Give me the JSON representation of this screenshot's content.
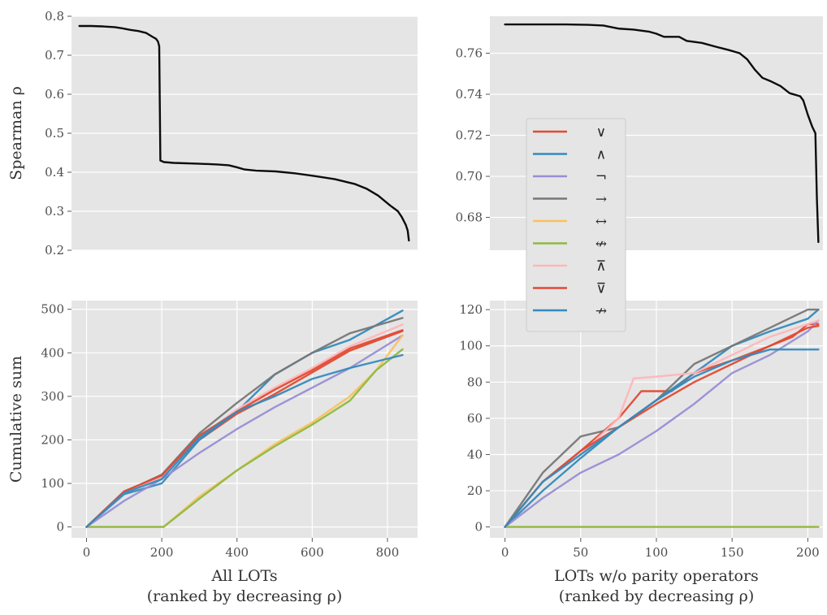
{
  "legend": {
    "placement": "between right panels",
    "entries": [
      {
        "label": "∨",
        "color": "#E24A33"
      },
      {
        "label": "∧",
        "color": "#348ABD"
      },
      {
        "label": "¬",
        "color": "#988ED5"
      },
      {
        "label": "→",
        "color": "#777777"
      },
      {
        "label": "↔",
        "color": "#FBC15E"
      },
      {
        "label": "↮",
        "color": "#8EBA42"
      },
      {
        "label": "⊼",
        "color": "#FFB5B8"
      },
      {
        "label": "⊽",
        "color": "#E24A33"
      },
      {
        "label": "↛",
        "color": "#348ABD"
      }
    ]
  },
  "style": {
    "background": "#E5E5E5",
    "grid": "#FFFFFF",
    "line": "#000000"
  },
  "chart_data": [
    {
      "id": "top-left",
      "type": "line",
      "xlabel": "",
      "ylabel": "Spearman ρ",
      "xlim": [
        -20,
        860
      ],
      "ylim": [
        0.2,
        0.8
      ],
      "grid": true,
      "show_xticks": false,
      "yticks": [
        0.2,
        0.3,
        0.4,
        0.5,
        0.6,
        0.7,
        0.8
      ],
      "ytick_labels": [
        "0.2",
        "0.3",
        "0.4",
        "0.5",
        "0.6",
        "0.7",
        "0.8"
      ],
      "series": [
        {
          "color": "#000000",
          "points": [
            [
              0,
              0.775
            ],
            [
              30,
              0.775
            ],
            [
              60,
              0.774
            ],
            [
              90,
              0.772
            ],
            [
              110,
              0.769
            ],
            [
              130,
              0.765
            ],
            [
              150,
              0.762
            ],
            [
              170,
              0.757
            ],
            [
              185,
              0.748
            ],
            [
              195,
              0.742
            ],
            [
              200,
              0.735
            ],
            [
              203,
              0.723
            ],
            [
              206,
              0.43
            ],
            [
              215,
              0.426
            ],
            [
              240,
              0.424
            ],
            [
              300,
              0.422
            ],
            [
              350,
              0.42
            ],
            [
              380,
              0.418
            ],
            [
              400,
              0.413
            ],
            [
              420,
              0.407
            ],
            [
              450,
              0.404
            ],
            [
              500,
              0.402
            ],
            [
              550,
              0.397
            ],
            [
              600,
              0.39
            ],
            [
              650,
              0.382
            ],
            [
              700,
              0.37
            ],
            [
              730,
              0.358
            ],
            [
              760,
              0.34
            ],
            [
              790,
              0.315
            ],
            [
              810,
              0.3
            ],
            [
              820,
              0.285
            ],
            [
              830,
              0.265
            ],
            [
              835,
              0.25
            ],
            [
              838,
              0.225
            ]
          ]
        }
      ]
    },
    {
      "id": "top-right",
      "type": "line",
      "xlabel": "",
      "ylabel": "",
      "xlim": [
        -10,
        210
      ],
      "ylim": [
        0.664,
        0.778
      ],
      "grid": true,
      "show_xticks": false,
      "yticks": [
        0.68,
        0.7,
        0.72,
        0.74,
        0.76
      ],
      "ytick_labels": [
        "0.68",
        "0.70",
        "0.72",
        "0.74",
        "0.76"
      ],
      "series": [
        {
          "color": "#000000",
          "points": [
            [
              0,
              0.774
            ],
            [
              20,
              0.774
            ],
            [
              40,
              0.774
            ],
            [
              55,
              0.7738
            ],
            [
              65,
              0.7735
            ],
            [
              75,
              0.772
            ],
            [
              85,
              0.7715
            ],
            [
              95,
              0.7705
            ],
            [
              100,
              0.7695
            ],
            [
              105,
              0.768
            ],
            [
              115,
              0.768
            ],
            [
              120,
              0.766
            ],
            [
              130,
              0.765
            ],
            [
              140,
              0.763
            ],
            [
              148,
              0.7615
            ],
            [
              155,
              0.76
            ],
            [
              160,
              0.757
            ],
            [
              165,
              0.752
            ],
            [
              170,
              0.748
            ],
            [
              175,
              0.7465
            ],
            [
              182,
              0.744
            ],
            [
              188,
              0.7405
            ],
            [
              195,
              0.739
            ],
            [
              197,
              0.737
            ],
            [
              200,
              0.73
            ],
            [
              203,
              0.724
            ],
            [
              205,
              0.721
            ],
            [
              206,
              0.69
            ],
            [
              207,
              0.668
            ]
          ]
        }
      ]
    },
    {
      "id": "bottom-left",
      "type": "line",
      "xlabel": "All LOTs",
      "xlabel2": "(ranked by decreasing ρ)",
      "ylabel": "Cumulative sum",
      "xlim": [
        -40,
        880
      ],
      "ylim": [
        -25,
        520
      ],
      "grid": true,
      "xticks": [
        0,
        200,
        400,
        600,
        800
      ],
      "xtick_labels": [
        "0",
        "200",
        "400",
        "600",
        "800"
      ],
      "yticks": [
        0,
        100,
        200,
        300,
        400,
        500
      ],
      "ytick_labels": [
        "0",
        "100",
        "200",
        "300",
        "400",
        "500"
      ],
      "series": [
        {
          "label": "∨",
          "color": "#E24A33",
          "points": [
            [
              0,
              0
            ],
            [
              100,
              80
            ],
            [
              200,
              120
            ],
            [
              300,
              200
            ],
            [
              400,
              260
            ],
            [
              500,
              305
            ],
            [
              600,
              355
            ],
            [
              700,
              405
            ],
            [
              840,
              450
            ]
          ]
        },
        {
          "label": "∧",
          "color": "#348ABD",
          "points": [
            [
              0,
              0
            ],
            [
              100,
              75
            ],
            [
              200,
              100
            ],
            [
              300,
              200
            ],
            [
              400,
              265
            ],
            [
              500,
              350
            ],
            [
              600,
              400
            ],
            [
              700,
              430
            ],
            [
              840,
              497
            ]
          ]
        },
        {
          "label": "¬",
          "color": "#988ED5",
          "points": [
            [
              0,
              0
            ],
            [
              100,
              60
            ],
            [
              200,
              110
            ],
            [
              300,
              170
            ],
            [
              400,
              225
            ],
            [
              500,
              275
            ],
            [
              600,
              320
            ],
            [
              700,
              365
            ],
            [
              840,
              440
            ]
          ]
        },
        {
          "label": "→",
          "color": "#777777",
          "points": [
            [
              0,
              0
            ],
            [
              100,
              80
            ],
            [
              200,
              120
            ],
            [
              300,
              215
            ],
            [
              400,
              285
            ],
            [
              500,
              350
            ],
            [
              600,
              400
            ],
            [
              700,
              445
            ],
            [
              840,
              480
            ]
          ]
        },
        {
          "label": "↔",
          "color": "#FBC15E",
          "points": [
            [
              0,
              0
            ],
            [
              205,
              0
            ],
            [
              300,
              70
            ],
            [
              400,
              130
            ],
            [
              500,
              190
            ],
            [
              600,
              240
            ],
            [
              700,
              300
            ],
            [
              770,
              360
            ],
            [
              840,
              440
            ]
          ]
        },
        {
          "label": "↮",
          "color": "#8EBA42",
          "points": [
            [
              0,
              0
            ],
            [
              205,
              0
            ],
            [
              300,
              65
            ],
            [
              400,
              130
            ],
            [
              500,
              185
            ],
            [
              600,
              235
            ],
            [
              700,
              290
            ],
            [
              770,
              360
            ],
            [
              840,
              408
            ]
          ]
        },
        {
          "label": "⊼",
          "color": "#FFB5B8",
          "points": [
            [
              0,
              0
            ],
            [
              100,
              78
            ],
            [
              200,
              115
            ],
            [
              300,
              205
            ],
            [
              400,
              270
            ],
            [
              500,
              320
            ],
            [
              600,
              365
            ],
            [
              700,
              415
            ],
            [
              840,
              465
            ]
          ]
        },
        {
          "label": "⊽",
          "color": "#E24A33",
          "points": [
            [
              0,
              0
            ],
            [
              100,
              82
            ],
            [
              200,
              118
            ],
            [
              300,
              210
            ],
            [
              400,
              265
            ],
            [
              500,
              315
            ],
            [
              600,
              360
            ],
            [
              700,
              410
            ],
            [
              840,
              452
            ]
          ]
        },
        {
          "label": "↛",
          "color": "#348ABD",
          "points": [
            [
              0,
              0
            ],
            [
              100,
              78
            ],
            [
              200,
              110
            ],
            [
              300,
              205
            ],
            [
              400,
              265
            ],
            [
              500,
              300
            ],
            [
              600,
              340
            ],
            [
              700,
              365
            ],
            [
              840,
              395
            ]
          ]
        }
      ]
    },
    {
      "id": "bottom-right",
      "type": "line",
      "xlabel": "LOTs w/o parity operators",
      "xlabel2": "(ranked by decreasing ρ)",
      "ylabel": "",
      "xlim": [
        -10,
        210
      ],
      "ylim": [
        -6,
        125
      ],
      "grid": true,
      "xticks": [
        0,
        50,
        100,
        150,
        200
      ],
      "xtick_labels": [
        "0",
        "50",
        "100",
        "150",
        "200"
      ],
      "yticks": [
        0,
        20,
        40,
        60,
        80,
        100,
        120
      ],
      "ytick_labels": [
        "0",
        "20",
        "40",
        "60",
        "80",
        "100",
        "120"
      ],
      "series": [
        {
          "label": "∨",
          "color": "#E24A33",
          "points": [
            [
              0,
              0
            ],
            [
              25,
              25
            ],
            [
              50,
              42
            ],
            [
              75,
              60
            ],
            [
              90,
              75
            ],
            [
              110,
              75
            ],
            [
              125,
              85
            ],
            [
              150,
              92
            ],
            [
              175,
              100
            ],
            [
              190,
              105
            ],
            [
              200,
              112
            ],
            [
              207,
              112
            ]
          ]
        },
        {
          "label": "∧",
          "color": "#348ABD",
          "points": [
            [
              0,
              0
            ],
            [
              25,
              20
            ],
            [
              50,
              38
            ],
            [
              75,
              55
            ],
            [
              100,
              70
            ],
            [
              125,
              85
            ],
            [
              150,
              100
            ],
            [
              175,
              108
            ],
            [
              200,
              115
            ],
            [
              207,
              120
            ]
          ]
        },
        {
          "label": "¬",
          "color": "#988ED5",
          "points": [
            [
              0,
              0
            ],
            [
              25,
              16
            ],
            [
              50,
              30
            ],
            [
              75,
              40
            ],
            [
              100,
              53
            ],
            [
              125,
              68
            ],
            [
              150,
              85
            ],
            [
              175,
              95
            ],
            [
              200,
              108
            ],
            [
              207,
              114
            ]
          ]
        },
        {
          "label": "→",
          "color": "#777777",
          "points": [
            [
              0,
              0
            ],
            [
              25,
              30
            ],
            [
              50,
              50
            ],
            [
              75,
              55
            ],
            [
              100,
              70
            ],
            [
              125,
              90
            ],
            [
              150,
              100
            ],
            [
              175,
              110
            ],
            [
              200,
              120
            ],
            [
              207,
              120
            ]
          ]
        },
        {
          "label": "↔",
          "color": "#FBC15E",
          "points": [
            [
              0,
              0
            ],
            [
              207,
              0
            ]
          ]
        },
        {
          "label": "↮",
          "color": "#8EBA42",
          "points": [
            [
              0,
              0
            ],
            [
              207,
              0
            ]
          ]
        },
        {
          "label": "⊼",
          "color": "#FFB5B8",
          "points": [
            [
              0,
              0
            ],
            [
              25,
              25
            ],
            [
              50,
              40
            ],
            [
              75,
              60
            ],
            [
              85,
              82
            ],
            [
              100,
              83
            ],
            [
              125,
              85
            ],
            [
              150,
              95
            ],
            [
              175,
              105
            ],
            [
              200,
              112
            ],
            [
              207,
              114
            ]
          ]
        },
        {
          "label": "⊽",
          "color": "#E24A33",
          "points": [
            [
              0,
              0
            ],
            [
              25,
              25
            ],
            [
              50,
              42
            ],
            [
              75,
              55
            ],
            [
              100,
              68
            ],
            [
              125,
              80
            ],
            [
              150,
              90
            ],
            [
              175,
              100
            ],
            [
              200,
              110
            ],
            [
              207,
              111
            ]
          ]
        },
        {
          "label": "↛",
          "color": "#348ABD",
          "points": [
            [
              0,
              0
            ],
            [
              25,
              25
            ],
            [
              50,
              40
            ],
            [
              75,
              55
            ],
            [
              100,
              70
            ],
            [
              125,
              83
            ],
            [
              150,
              92
            ],
            [
              175,
              98
            ],
            [
              207,
              98
            ]
          ]
        }
      ]
    }
  ]
}
